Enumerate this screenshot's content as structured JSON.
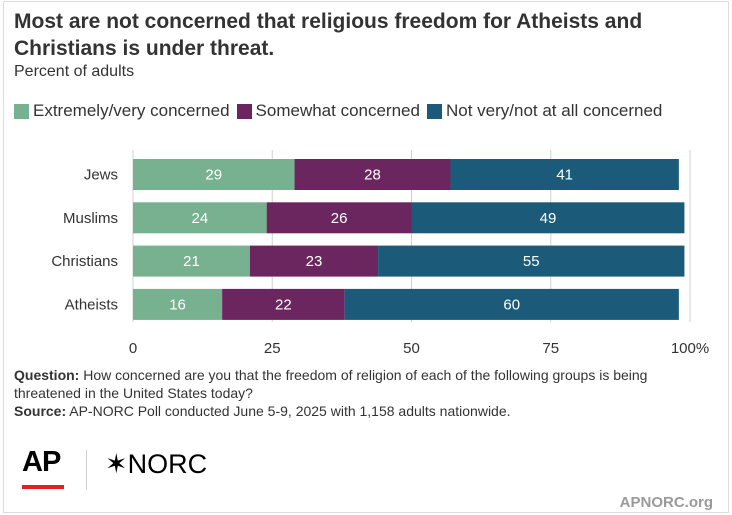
{
  "title": "Most are not concerned that religious freedom for Atheists and Christians is under threat.",
  "subtitle": "Percent of adults",
  "colors": {
    "extremely_very": "#78b18f",
    "somewhat": "#6b2660",
    "not_very": "#1b5a78"
  },
  "chart_data": {
    "type": "bar",
    "orientation": "horizontal",
    "stacked": true,
    "categories": [
      "Jews",
      "Muslims",
      "Christians",
      "Atheists"
    ],
    "series": [
      {
        "name": "Extremely/very concerned",
        "values": [
          29,
          24,
          21,
          16
        ]
      },
      {
        "name": "Somewhat concerned",
        "values": [
          28,
          26,
          23,
          22
        ]
      },
      {
        "name": "Not very/not at all concerned",
        "values": [
          41,
          49,
          55,
          60
        ]
      }
    ],
    "xlim": [
      0,
      100
    ],
    "xticks": [
      "0",
      "25",
      "50",
      "75",
      "100%"
    ],
    "grid": true,
    "legend": "top"
  },
  "notes": {
    "question_label": "Question:",
    "question_text": "How concerned are you that the freedom of religion of each of the following groups is being threatened in the United States today?",
    "source_label": "Source:",
    "source_text": "AP-NORC Poll conducted June 5-9, 2025 with 1,158 adults nationwide."
  },
  "logos": {
    "ap": "AP",
    "norc": "NORC",
    "site": "APNORC.org"
  }
}
